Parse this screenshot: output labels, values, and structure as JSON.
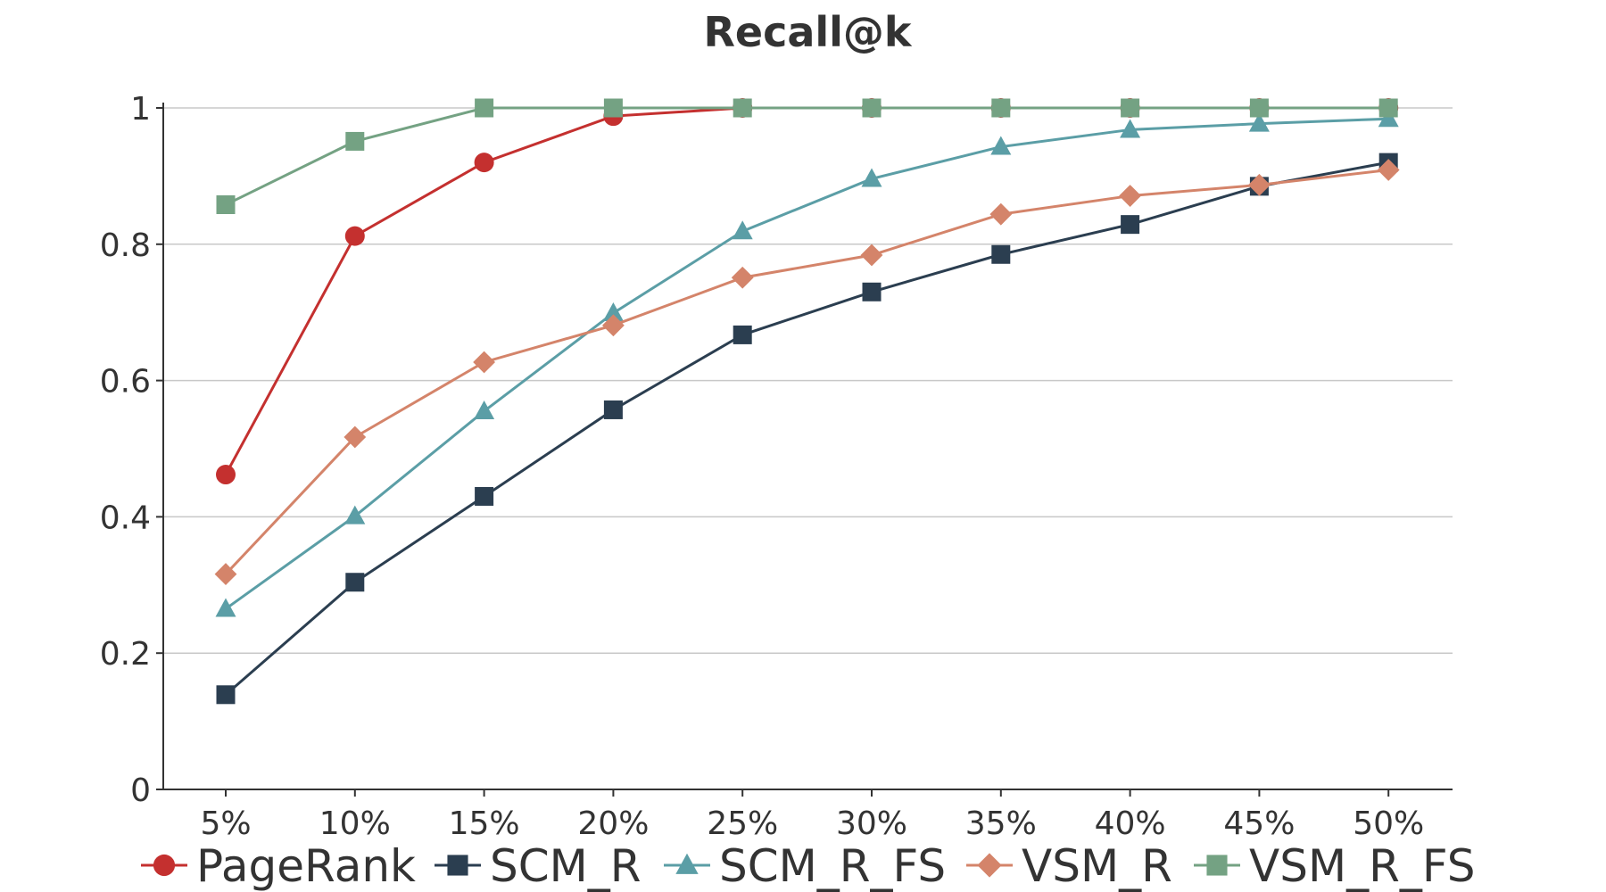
{
  "chart_data": {
    "type": "line",
    "title": "Recall@k",
    "xlabel": "",
    "ylabel": "",
    "categories": [
      "5%",
      "10%",
      "15%",
      "20%",
      "25%",
      "30%",
      "35%",
      "40%",
      "45%",
      "50%"
    ],
    "ylim": [
      0,
      1
    ],
    "yticks": [
      0,
      0.2,
      0.4,
      0.6,
      0.8,
      1
    ],
    "ytick_labels": [
      "0",
      "0.2",
      "0.4",
      "0.6",
      "0.8",
      "1"
    ],
    "grid": true,
    "legend_position": "bottom",
    "series": [
      {
        "name": "PageRank",
        "color": "#c4302f",
        "marker": "circle",
        "values": [
          0.462,
          0.812,
          0.92,
          0.988,
          1.0,
          1.0,
          1.0,
          1.0,
          1.0,
          1.0
        ]
      },
      {
        "name": "SCM_R",
        "color": "#2b3e50",
        "marker": "square",
        "values": [
          0.139,
          0.304,
          0.43,
          0.557,
          0.667,
          0.73,
          0.785,
          0.829,
          0.885,
          0.92
        ]
      },
      {
        "name": "SCM_R_FS",
        "color": "#5b9ea6",
        "marker": "triangle",
        "values": [
          0.265,
          0.401,
          0.555,
          0.699,
          0.819,
          0.896,
          0.943,
          0.968,
          0.977,
          0.984
        ]
      },
      {
        "name": "VSM_R",
        "color": "#d4846a",
        "marker": "diamond",
        "values": [
          0.316,
          0.517,
          0.627,
          0.681,
          0.751,
          0.784,
          0.844,
          0.871,
          0.887,
          0.909
        ]
      },
      {
        "name": "VSM_R_FS",
        "color": "#74a283",
        "marker": "square",
        "values": [
          0.858,
          0.951,
          1.0,
          1.0,
          1.0,
          1.0,
          1.0,
          1.0,
          1.0,
          1.0
        ]
      }
    ]
  }
}
